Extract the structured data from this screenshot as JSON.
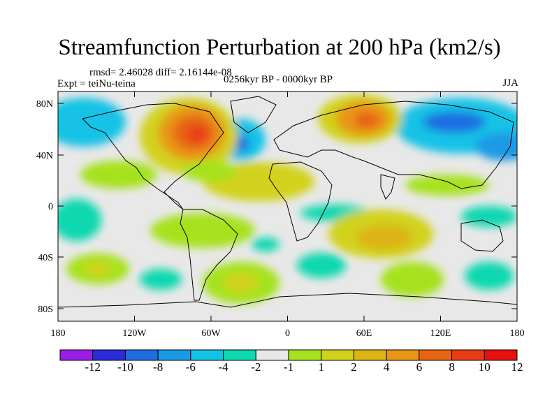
{
  "title": "Streamfunction Perturbation at 200 hPa (km2/s)",
  "stats": "rmsd= 2.46028  diff= 2.16144e-08",
  "experiment": "Expt = teiNu-teina",
  "period": "0256kyr BP - 0000kyr BP",
  "season": "JJA",
  "lat_labels": [
    "80N",
    "40N",
    "0",
    "40S",
    "80S"
  ],
  "lon_labels": [
    "180",
    "120W",
    "60W",
    "0",
    "60E",
    "120E",
    "180"
  ],
  "colorbar": {
    "labels": [
      "-12",
      "-10",
      "-8",
      "-6",
      "-4",
      "-2",
      "-1",
      "1",
      "2",
      "4",
      "6",
      "8",
      "10",
      "12"
    ],
    "colors": [
      "#9a1ee6",
      "#2b2bd9",
      "#1f6ee0",
      "#1a9ae6",
      "#14c2e6",
      "#10d8b0",
      "#e8e8e8",
      "#a6e21e",
      "#d2d21c",
      "#dcb414",
      "#e89614",
      "#e86414",
      "#e83c14",
      "#e61010"
    ]
  }
}
